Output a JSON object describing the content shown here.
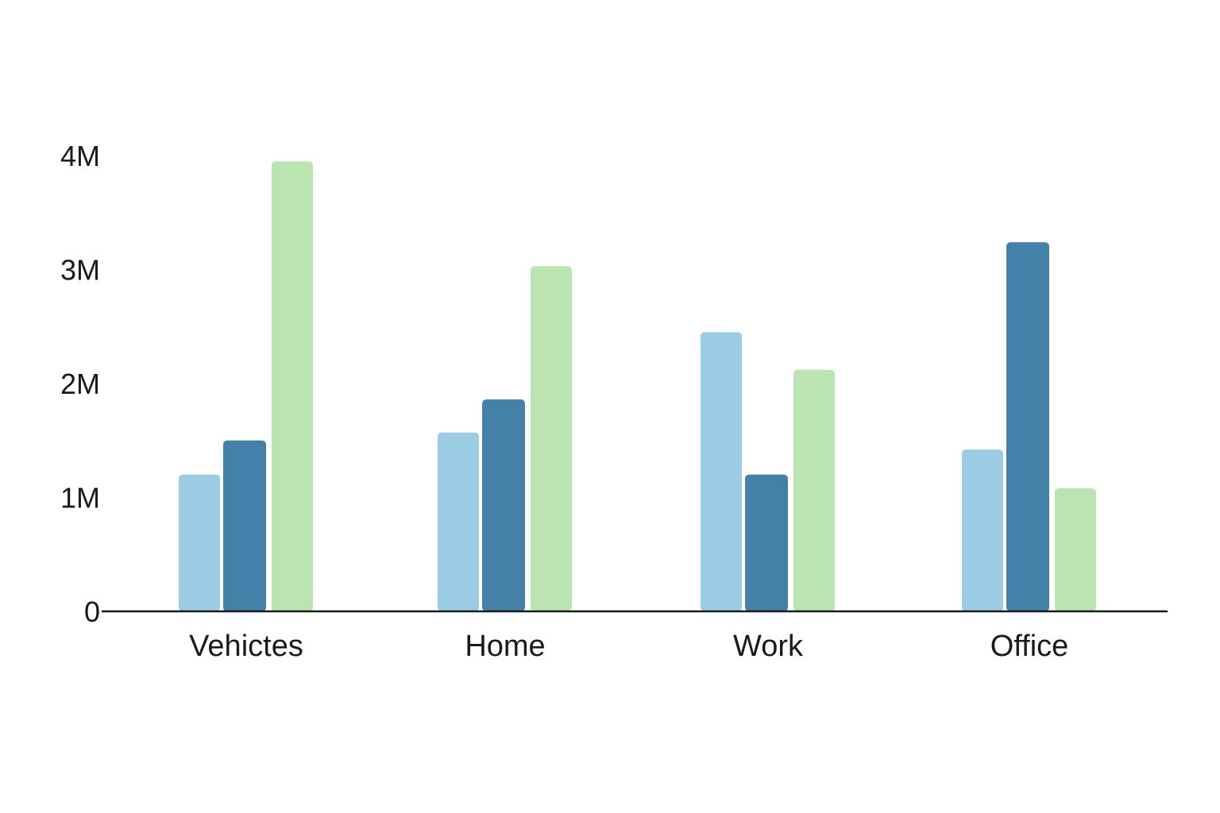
{
  "chart_data": {
    "type": "bar",
    "title": "",
    "xlabel": "",
    "ylabel": "",
    "categories": [
      "Vehictes",
      "Home",
      "Work",
      "Office"
    ],
    "series": [
      {
        "color": "#9acde4",
        "values": [
          1.2,
          1.57,
          2.45,
          1.42
        ]
      },
      {
        "color": "#4381a8",
        "values": [
          1.5,
          1.86,
          1.2,
          3.24
        ]
      },
      {
        "color": "#bae5b0",
        "values": [
          3.95,
          3.03,
          2.12,
          1.08
        ]
      }
    ],
    "ylim": [
      0,
      4
    ],
    "yticks": [
      {
        "value": 0,
        "label": "0"
      },
      {
        "value": 1,
        "label": "1M"
      },
      {
        "value": 2,
        "label": "2M"
      },
      {
        "value": 3,
        "label": "3M"
      },
      {
        "value": 4,
        "label": "4M"
      }
    ],
    "grid": false,
    "legend": "none"
  }
}
